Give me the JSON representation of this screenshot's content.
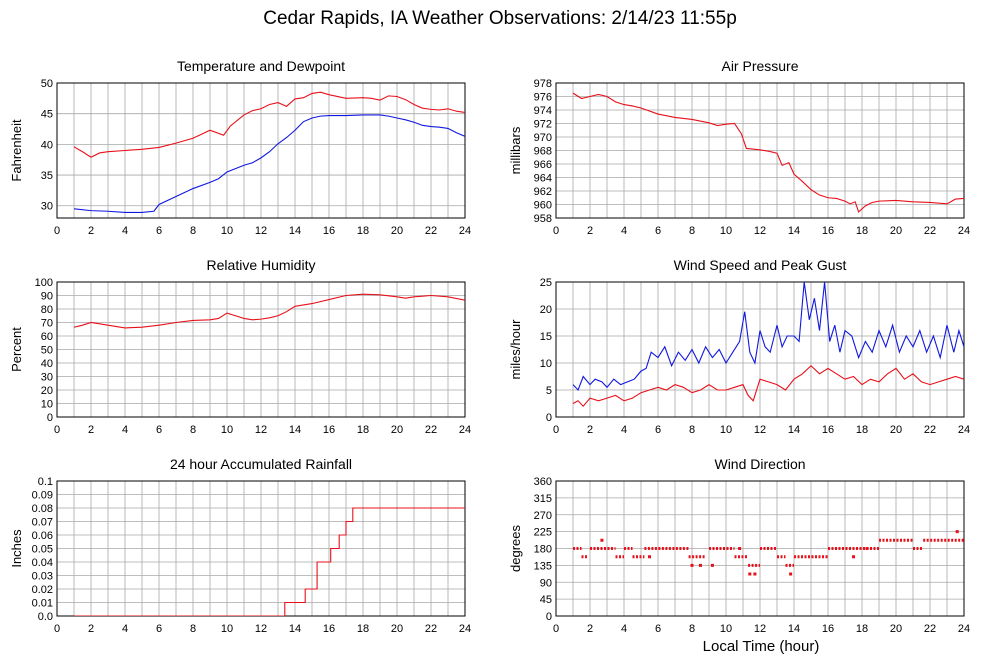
{
  "page_title": "Cedar Rapids, IA Weather Observations: 2/14/23 11:55p",
  "footer_xlabel": "Local Time (hour)",
  "colors": {
    "red": "#e8101a",
    "blue": "#1018e0",
    "grid": "#a8a8a8"
  },
  "chart_data": [
    {
      "id": "temp",
      "type": "line",
      "title": "Temperature and Dewpoint",
      "ylabel": "Fahrenheit",
      "xlabel": "",
      "xlim": [
        0,
        24
      ],
      "ylim": [
        28,
        50
      ],
      "xticks": [
        0,
        2,
        4,
        6,
        8,
        10,
        12,
        14,
        16,
        18,
        20,
        22,
        24
      ],
      "yticks": [
        30,
        35,
        40,
        45,
        50
      ],
      "grid": true,
      "series": [
        {
          "color": "#e8101a",
          "x": [
            1,
            1.5,
            2,
            2.5,
            3,
            4,
            5,
            6,
            7,
            8,
            9,
            9.8,
            10.2,
            11,
            11.5,
            12,
            12.5,
            13,
            13.5,
            14,
            14.5,
            15,
            15.5,
            16,
            17,
            18,
            18.5,
            19,
            19.5,
            20,
            20.5,
            21,
            21.5,
            22,
            22.5,
            23,
            23.5,
            24
          ],
          "y": [
            39.6,
            38.8,
            37.9,
            38.6,
            38.8,
            39.0,
            39.2,
            39.5,
            40.2,
            41.0,
            42.3,
            41.5,
            43.0,
            44.8,
            45.5,
            45.8,
            46.5,
            46.8,
            46.2,
            47.4,
            47.6,
            48.3,
            48.5,
            48.1,
            47.5,
            47.6,
            47.5,
            47.2,
            47.9,
            47.8,
            47.3,
            46.5,
            45.9,
            45.7,
            45.6,
            45.8,
            45.4,
            45.2
          ]
        },
        {
          "color": "#1018e0",
          "x": [
            1,
            2,
            3,
            4,
            5,
            5.7,
            6,
            7,
            8,
            9,
            9.5,
            10,
            11,
            11.5,
            12,
            12.5,
            13,
            13.5,
            14,
            14.5,
            15,
            15.5,
            16,
            17,
            18,
            19,
            19.5,
            20,
            20.5,
            21,
            21.5,
            22,
            22.5,
            23,
            23.5,
            24
          ],
          "y": [
            29.5,
            29.2,
            29.1,
            28.9,
            28.9,
            29.1,
            30.2,
            31.5,
            32.8,
            33.8,
            34.4,
            35.5,
            36.6,
            37.0,
            37.8,
            38.8,
            40.1,
            41.1,
            42.3,
            43.7,
            44.3,
            44.6,
            44.7,
            44.7,
            44.8,
            44.8,
            44.6,
            44.3,
            44.0,
            43.6,
            43.1,
            42.9,
            42.8,
            42.6,
            41.9,
            41.3
          ]
        }
      ]
    },
    {
      "id": "pressure",
      "type": "line",
      "title": "Air Pressure",
      "ylabel": "millibars",
      "xlabel": "",
      "xlim": [
        0,
        24
      ],
      "ylim": [
        958,
        978
      ],
      "xticks": [
        0,
        2,
        4,
        6,
        8,
        10,
        12,
        14,
        16,
        18,
        20,
        22,
        24
      ],
      "yticks": [
        958,
        960,
        962,
        964,
        966,
        968,
        970,
        972,
        974,
        976,
        978
      ],
      "grid": true,
      "series": [
        {
          "color": "#e8101a",
          "x": [
            1,
            1.5,
            2,
            2.5,
            3,
            3.5,
            4,
            4.5,
            5,
            6,
            7,
            8,
            9,
            9.5,
            10,
            10.5,
            10.9,
            11.2,
            12,
            12.5,
            13,
            13.3,
            13.7,
            14,
            14.5,
            15,
            15.5,
            16,
            16.5,
            17,
            17.3,
            17.6,
            17.8,
            18.2,
            18.6,
            19,
            20,
            21,
            22,
            23,
            23.5,
            24
          ],
          "y": [
            976.5,
            975.7,
            976.0,
            976.3,
            976.0,
            975.2,
            974.8,
            974.6,
            974.3,
            973.4,
            972.9,
            972.6,
            972.1,
            971.7,
            971.9,
            972.0,
            970.5,
            968.3,
            968.1,
            967.9,
            967.6,
            965.8,
            966.2,
            964.5,
            963.4,
            962.2,
            961.4,
            961.0,
            960.9,
            960.5,
            960.1,
            960.4,
            958.9,
            959.8,
            960.3,
            960.5,
            960.6,
            960.4,
            960.3,
            960.1,
            960.8,
            960.9
          ]
        }
      ]
    },
    {
      "id": "humidity",
      "type": "line",
      "title": "Relative Humidity",
      "ylabel": "Percent",
      "xlabel": "",
      "xlim": [
        0,
        24
      ],
      "ylim": [
        0,
        100
      ],
      "xticks": [
        0,
        2,
        4,
        6,
        8,
        10,
        12,
        14,
        16,
        18,
        20,
        22,
        24
      ],
      "yticks": [
        0,
        10,
        20,
        30,
        40,
        50,
        60,
        70,
        80,
        90,
        100
      ],
      "grid": true,
      "series": [
        {
          "color": "#e8101a",
          "x": [
            1,
            1.5,
            2,
            2.5,
            3,
            4,
            5,
            6,
            7,
            8,
            9,
            9.5,
            10,
            10.5,
            11,
            11.5,
            12,
            12.5,
            13,
            13.5,
            14,
            15,
            16,
            17,
            18,
            19,
            20,
            20.5,
            21,
            21.5,
            22,
            23,
            24
          ],
          "y": [
            66.5,
            68,
            70,
            69,
            68,
            66,
            66.5,
            68,
            70,
            71.5,
            72,
            73,
            77,
            75,
            73,
            72,
            72.5,
            73.5,
            75,
            78,
            82,
            84,
            87,
            90,
            91,
            90.5,
            89,
            88,
            89,
            89.5,
            90,
            89,
            86.5
          ]
        }
      ]
    },
    {
      "id": "wind",
      "type": "line",
      "title": "Wind Speed and Peak Gust",
      "ylabel": "miles/hour",
      "xlabel": "",
      "xlim": [
        0,
        24
      ],
      "ylim": [
        0,
        25
      ],
      "xticks": [
        0,
        2,
        4,
        6,
        8,
        10,
        12,
        14,
        16,
        18,
        20,
        22,
        24
      ],
      "yticks": [
        0,
        5,
        10,
        15,
        20,
        25
      ],
      "grid": true,
      "series": [
        {
          "color": "#1018e0",
          "x": [
            1,
            1.3,
            1.6,
            2,
            2.3,
            2.7,
            3,
            3.4,
            3.8,
            4.2,
            4.6,
            5,
            5.3,
            5.6,
            6,
            6.4,
            6.8,
            7.2,
            7.6,
            8,
            8.4,
            8.8,
            9.2,
            9.6,
            10,
            10.4,
            10.8,
            11.1,
            11.4,
            11.7,
            12,
            12.3,
            12.6,
            13,
            13.3,
            13.6,
            14,
            14.3,
            14.6,
            14.9,
            15.2,
            15.5,
            15.8,
            16.1,
            16.4,
            16.7,
            17,
            17.4,
            17.8,
            18.2,
            18.6,
            19,
            19.4,
            19.8,
            20.2,
            20.6,
            21,
            21.4,
            21.8,
            22.2,
            22.6,
            23,
            23.4,
            23.7,
            24
          ],
          "y": [
            6,
            5,
            7.5,
            6,
            7,
            6.5,
            5.5,
            7,
            6,
            6.5,
            7,
            8.5,
            9,
            12,
            11,
            13,
            9.5,
            12,
            10.5,
            12.5,
            10,
            13,
            11,
            12.5,
            10,
            12,
            14,
            19.5,
            12,
            10,
            16,
            13,
            12,
            17,
            13,
            15,
            15,
            14,
            25,
            18,
            22,
            16,
            25,
            14,
            17,
            12,
            16,
            15,
            11,
            14,
            12,
            16,
            13,
            17,
            12,
            15,
            13,
            16,
            12,
            15,
            11,
            17,
            12,
            16,
            13
          ]
        },
        {
          "color": "#e8101a",
          "x": [
            1,
            1.3,
            1.6,
            2,
            2.5,
            3,
            3.5,
            4,
            4.5,
            5,
            5.5,
            6,
            6.5,
            7,
            7.5,
            8,
            8.5,
            9,
            9.5,
            10,
            10.5,
            11,
            11.3,
            11.6,
            12,
            12.5,
            13,
            13.5,
            14,
            14.5,
            15,
            15.5,
            16,
            16.5,
            17,
            17.5,
            18,
            18.5,
            19,
            19.5,
            20,
            20.5,
            21,
            21.5,
            22,
            22.5,
            23,
            23.5,
            24
          ],
          "y": [
            2.5,
            3,
            2,
            3.5,
            3,
            3.5,
            4,
            3,
            3.5,
            4.5,
            5,
            5.5,
            5,
            6,
            5.5,
            4.5,
            5,
            6,
            5,
            5,
            5.5,
            6,
            4,
            3,
            7,
            6.5,
            6,
            5,
            7,
            8,
            9.5,
            8,
            9,
            8,
            7,
            7.5,
            6,
            7,
            6.5,
            8,
            9,
            7,
            8,
            6.5,
            6,
            6.5,
            7,
            7.5,
            7
          ]
        }
      ]
    },
    {
      "id": "rain",
      "type": "line",
      "title": "24 hour Accumulated Rainfall",
      "ylabel": "Inches",
      "xlabel": "",
      "xlim": [
        0,
        24
      ],
      "ylim": [
        0,
        0.1
      ],
      "xticks": [
        0,
        2,
        4,
        6,
        8,
        10,
        12,
        14,
        16,
        18,
        20,
        22,
        24
      ],
      "yticks": [
        0.0,
        0.01,
        0.02,
        0.03,
        0.04,
        0.05,
        0.06,
        0.07,
        0.08,
        0.09,
        0.1
      ],
      "ytick_labels": [
        "0.0",
        "0.01",
        "0.02",
        "0.03",
        "0.04",
        "0.05",
        "0.06",
        "0.07",
        "0.08",
        "0.09",
        "0.1"
      ],
      "grid": true,
      "series": [
        {
          "color": "#e8101a",
          "step": true,
          "x": [
            1,
            13.4,
            14.6,
            15.3,
            16.1,
            16.6,
            17.0,
            17.4,
            18.0,
            24
          ],
          "y": [
            0.0,
            0.01,
            0.02,
            0.04,
            0.05,
            0.06,
            0.07,
            0.08,
            0.08,
            0.08
          ]
        }
      ]
    },
    {
      "id": "direction",
      "type": "scatter",
      "title": "Wind Direction",
      "ylabel": "degrees",
      "xlabel": "Local Time (hour)",
      "xlim": [
        0,
        24
      ],
      "ylim": [
        0,
        360
      ],
      "xticks": [
        0,
        2,
        4,
        6,
        8,
        10,
        12,
        14,
        16,
        18,
        20,
        22,
        24
      ],
      "yticks": [
        0,
        45,
        90,
        135,
        180,
        225,
        270,
        315,
        360
      ],
      "grid": true,
      "segments": [
        {
          "color": "#e8101a",
          "x0": 1.0,
          "x1": 1.5,
          "y": 180
        },
        {
          "color": "#e8101a",
          "x0": 1.5,
          "x1": 1.9,
          "y": 158
        },
        {
          "color": "#e8101a",
          "x0": 2.0,
          "x1": 3.5,
          "y": 180
        },
        {
          "color": "#e8101a",
          "x0": 3.5,
          "x1": 4.0,
          "y": 158
        },
        {
          "color": "#e8101a",
          "x0": 4.0,
          "x1": 4.5,
          "y": 180
        },
        {
          "color": "#e8101a",
          "x0": 4.5,
          "x1": 5.2,
          "y": 158
        },
        {
          "color": "#e8101a",
          "x0": 5.2,
          "x1": 7.8,
          "y": 180
        },
        {
          "color": "#e8101a",
          "x0": 7.8,
          "x1": 8.8,
          "y": 158
        },
        {
          "color": "#e8101a",
          "x0": 9.0,
          "x1": 10.5,
          "y": 180
        },
        {
          "color": "#e8101a",
          "x0": 10.5,
          "x1": 11.3,
          "y": 158
        },
        {
          "color": "#e8101a",
          "x0": 11.3,
          "x1": 12.0,
          "y": 135
        },
        {
          "color": "#e8101a",
          "x0": 12.0,
          "x1": 13.0,
          "y": 180
        },
        {
          "color": "#e8101a",
          "x0": 13.0,
          "x1": 13.5,
          "y": 158
        },
        {
          "color": "#e8101a",
          "x0": 13.5,
          "x1": 14.0,
          "y": 135
        },
        {
          "color": "#e8101a",
          "x0": 14.0,
          "x1": 16.0,
          "y": 158
        },
        {
          "color": "#e8101a",
          "x0": 16.0,
          "x1": 19.0,
          "y": 180
        },
        {
          "color": "#e8101a",
          "x0": 19.0,
          "x1": 21.0,
          "y": 202
        },
        {
          "color": "#e8101a",
          "x0": 21.0,
          "x1": 21.6,
          "y": 180
        },
        {
          "color": "#e8101a",
          "x0": 21.6,
          "x1": 24.0,
          "y": 202
        }
      ],
      "points": [
        {
          "x": 2.7,
          "y": 202
        },
        {
          "x": 5.5,
          "y": 158
        },
        {
          "x": 8.0,
          "y": 135
        },
        {
          "x": 8.5,
          "y": 135
        },
        {
          "x": 9.2,
          "y": 135
        },
        {
          "x": 10.8,
          "y": 180
        },
        {
          "x": 11.4,
          "y": 112
        },
        {
          "x": 11.7,
          "y": 112
        },
        {
          "x": 13.8,
          "y": 112
        },
        {
          "x": 17.5,
          "y": 158
        },
        {
          "x": 18.3,
          "y": 180
        },
        {
          "x": 23.6,
          "y": 225
        }
      ]
    }
  ]
}
